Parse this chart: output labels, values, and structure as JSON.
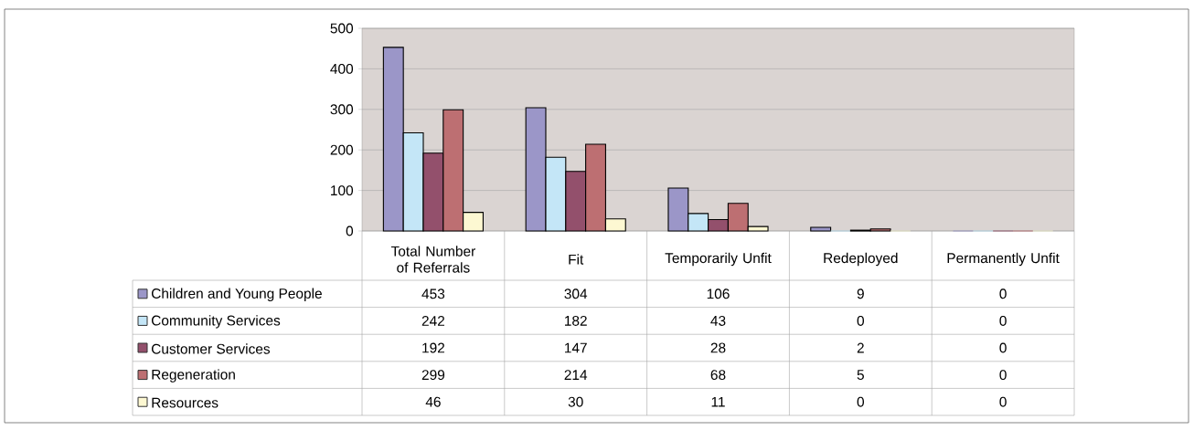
{
  "chart_data": {
    "type": "bar",
    "categories": [
      "Total Number of Referrals",
      "Fit",
      "Temporarily Unfit",
      "Redeployed",
      "Permanently Unfit"
    ],
    "series": [
      {
        "name": "Children and Young People",
        "color": "#9b96c8",
        "values": [
          453,
          304,
          106,
          9,
          0
        ]
      },
      {
        "name": "Community Services",
        "color": "#c4e6f7",
        "values": [
          242,
          182,
          43,
          0,
          0
        ]
      },
      {
        "name": "Customer Services",
        "color": "#93506c",
        "values": [
          192,
          147,
          28,
          2,
          0
        ]
      },
      {
        "name": "Regeneration",
        "color": "#bd6f72",
        "values": [
          299,
          214,
          68,
          5,
          0
        ]
      },
      {
        "name": "Resources",
        "color": "#fdf8d2",
        "values": [
          46,
          30,
          11,
          0,
          0
        ]
      }
    ],
    "ylim": [
      0,
      500
    ],
    "yticks": [
      0,
      100,
      200,
      300,
      400,
      500
    ],
    "grid": "y",
    "legend": "bottom left",
    "data_labels": true
  }
}
